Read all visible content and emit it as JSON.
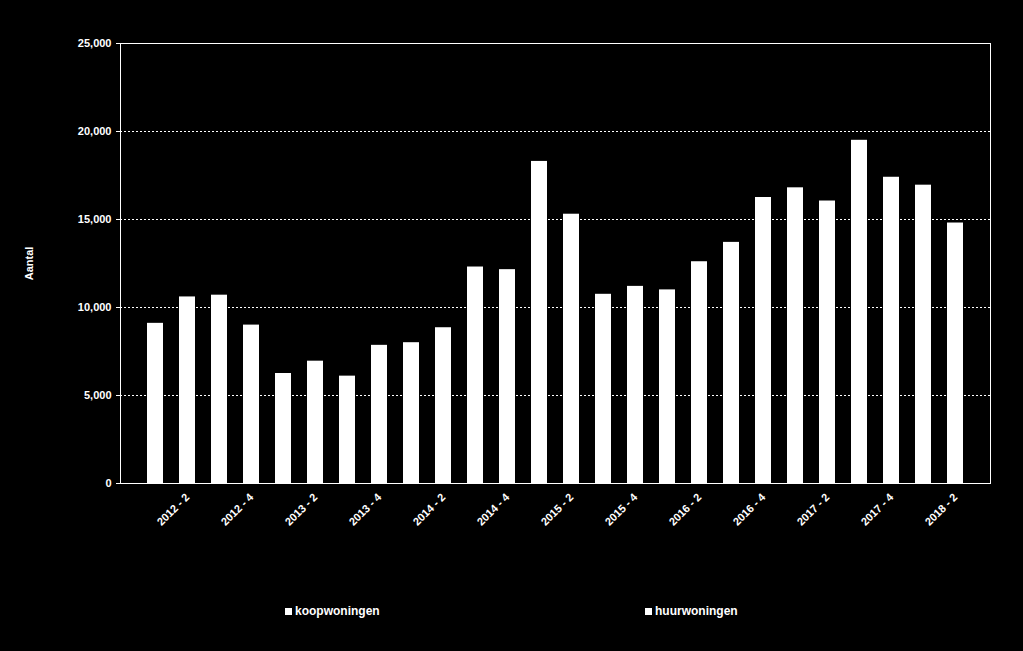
{
  "chart_data": {
    "type": "bar",
    "y_label": "Aantal",
    "categories": [
      null,
      "2012 - 2",
      null,
      "2012 - 4",
      null,
      "2013 - 2",
      null,
      "2013 - 4",
      null,
      "2014 - 2",
      null,
      "2014 - 4",
      null,
      "2015 - 2",
      null,
      "2015 - 4",
      null,
      "2016 - 2",
      null,
      "2016 - 4",
      null,
      "2017 - 2",
      null,
      "2017 - 4",
      null,
      "2018 - 2"
    ],
    "series": [
      {
        "name": "koopwoningen",
        "color": "#ffffff",
        "values": [
          9100,
          10600,
          10700,
          9000,
          6250,
          6950,
          6100,
          7850,
          8000,
          8850,
          12300,
          12150,
          18300,
          15300,
          10750,
          11200,
          11000,
          12600,
          13700,
          16250,
          16800,
          16050,
          19500,
          17400,
          16950,
          14800
        ]
      },
      {
        "name": "huurwoningen",
        "color": "#ffffff",
        "values": [
          null,
          null,
          null,
          null,
          null,
          null,
          null,
          null,
          null,
          null,
          null,
          null,
          null,
          null,
          null,
          null,
          null,
          null,
          null,
          null,
          null,
          null,
          null,
          null,
          null,
          null
        ]
      }
    ],
    "ylim": [
      0,
      25000
    ],
    "yticks": [
      0,
      {
        "value": 5000,
        "label": "5,000"
      },
      {
        "value": 10000,
        "label": "10,000"
      },
      {
        "value": 15000,
        "label": "15,000"
      },
      {
        "value": 20000,
        "label": "20,000"
      },
      {
        "value": 25000,
        "label": "25,000"
      }
    ],
    "grid": true,
    "legend": "bottom"
  }
}
